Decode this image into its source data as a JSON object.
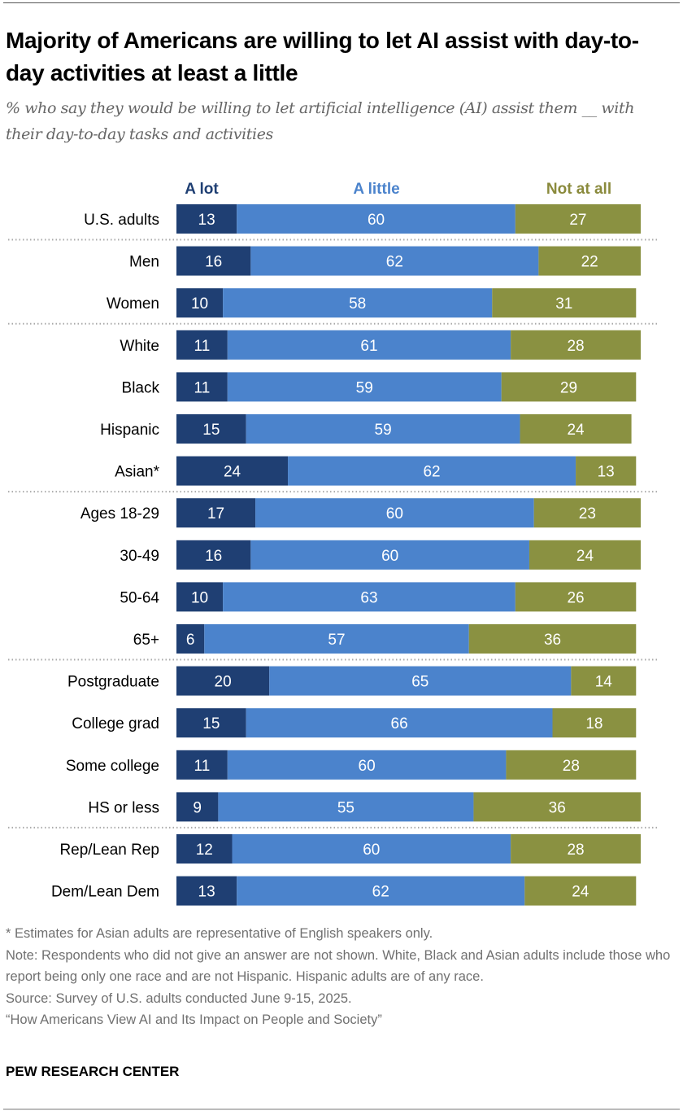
{
  "title": "Majority of Americans are willing to let AI assist with day-to-day activities at least a little",
  "subtitle": "% who say they would be willing to let artificial intelligence (AI) assist them __ with their day-to-day tasks and activities",
  "colors": {
    "a_lot": "#1f3f73",
    "a_little": "#4b83cc",
    "not_at_all": "#8a9141",
    "legend_a_lot": "#1f3f73",
    "legend_a_little": "#4b83cc",
    "legend_not_at_all": "#8a8a3c"
  },
  "chart_data": {
    "type": "bar",
    "orientation": "horizontal-stacked",
    "title": "Majority of Americans are willing to let AI assist with day-to-day activities at least a little",
    "xlabel": "",
    "ylabel": "",
    "xlim": [
      0,
      100
    ],
    "legend": "top",
    "series": [
      {
        "name": "A lot",
        "key": "a_lot"
      },
      {
        "name": "A little",
        "key": "a_little"
      },
      {
        "name": "Not at all",
        "key": "not_at_all"
      }
    ],
    "categories": [
      "U.S. adults",
      "Men",
      "Women",
      "White",
      "Black",
      "Hispanic",
      "Asian*",
      "Ages 18-29",
      "30-49",
      "50-64",
      "65+",
      "Postgraduate",
      "College grad",
      "Some college",
      "HS or less",
      "Rep/Lean Rep",
      "Dem/Lean Dem"
    ],
    "groups_end_after": [
      0,
      2,
      6,
      10,
      14
    ],
    "rows": [
      {
        "label": "U.S. adults",
        "a_lot": 13,
        "a_little": 60,
        "not_at_all": 27
      },
      {
        "label": "Men",
        "a_lot": 16,
        "a_little": 62,
        "not_at_all": 22
      },
      {
        "label": "Women",
        "a_lot": 10,
        "a_little": 58,
        "not_at_all": 31
      },
      {
        "label": "White",
        "a_lot": 11,
        "a_little": 61,
        "not_at_all": 28
      },
      {
        "label": "Black",
        "a_lot": 11,
        "a_little": 59,
        "not_at_all": 29
      },
      {
        "label": "Hispanic",
        "a_lot": 15,
        "a_little": 59,
        "not_at_all": 24
      },
      {
        "label": "Asian*",
        "a_lot": 24,
        "a_little": 62,
        "not_at_all": 13
      },
      {
        "label": "Ages 18-29",
        "a_lot": 17,
        "a_little": 60,
        "not_at_all": 23
      },
      {
        "label": "30-49",
        "a_lot": 16,
        "a_little": 60,
        "not_at_all": 24
      },
      {
        "label": "50-64",
        "a_lot": 10,
        "a_little": 63,
        "not_at_all": 26
      },
      {
        "label": "65+",
        "a_lot": 6,
        "a_little": 57,
        "not_at_all": 36
      },
      {
        "label": "Postgraduate",
        "a_lot": 20,
        "a_little": 65,
        "not_at_all": 14
      },
      {
        "label": "College grad",
        "a_lot": 15,
        "a_little": 66,
        "not_at_all": 18
      },
      {
        "label": "Some college",
        "a_lot": 11,
        "a_little": 60,
        "not_at_all": 28
      },
      {
        "label": "HS or less",
        "a_lot": 9,
        "a_little": 55,
        "not_at_all": 36
      },
      {
        "label": "Rep/Lean Rep",
        "a_lot": 12,
        "a_little": 60,
        "not_at_all": 28
      },
      {
        "label": "Dem/Lean Dem",
        "a_lot": 13,
        "a_little": 62,
        "not_at_all": 24
      }
    ]
  },
  "legend": {
    "a_lot": "A lot",
    "a_little": "A little",
    "not_at_all": "Not at all"
  },
  "footnotes": [
    "* Estimates for Asian adults are representative of English speakers only.",
    "Note: Respondents who did not give an answer are not shown. White, Black and Asian adults include those who report being only one race and are not Hispanic. Hispanic adults are of any race.",
    "Source: Survey of U.S. adults conducted June 9-15, 2025.",
    "“How Americans View AI and Its Impact on People and Society”"
  ],
  "brand": "PEW RESEARCH CENTER"
}
